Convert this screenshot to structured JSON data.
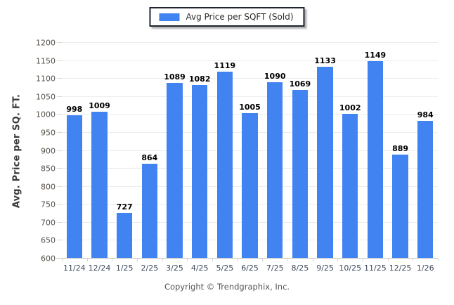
{
  "legend": {
    "label": "Avg Price per SQFT (Sold)"
  },
  "y_axis": {
    "title": "Avg. Price per SQ. FT."
  },
  "footer": {
    "text": "Copyright © Trendgraphix, Inc."
  },
  "chart_data": {
    "type": "bar",
    "title": "",
    "categories": [
      "11/24",
      "12/24",
      "1/25",
      "2/25",
      "3/25",
      "4/25",
      "5/25",
      "6/25",
      "7/25",
      "8/25",
      "9/25",
      "10/25",
      "11/25",
      "12/25",
      "1/26"
    ],
    "series": [
      {
        "name": "Avg Price per SQFT (Sold)",
        "values": [
          998,
          1009,
          727,
          864,
          1089,
          1082,
          1119,
          1005,
          1090,
          1069,
          1133,
          1002,
          1149,
          889,
          984
        ]
      }
    ],
    "xlabel": "",
    "ylabel": "Avg. Price per SQ. FT.",
    "ylim": [
      600,
      1200
    ],
    "ytick_step": 50,
    "grid": "horizontal",
    "legend_position": "top-center",
    "value_labels": true,
    "colors": {
      "bar": "#4184F1",
      "gridline": "#ECECEC",
      "axis_line": "#C8C8C8",
      "value_label": "#000000",
      "x_tick_label": "#3E4A5C",
      "y_tick_label": "#57514B",
      "axis_title": "#3A3A3A",
      "footer_text": "#555555",
      "legend_border": "#1E2430"
    }
  }
}
